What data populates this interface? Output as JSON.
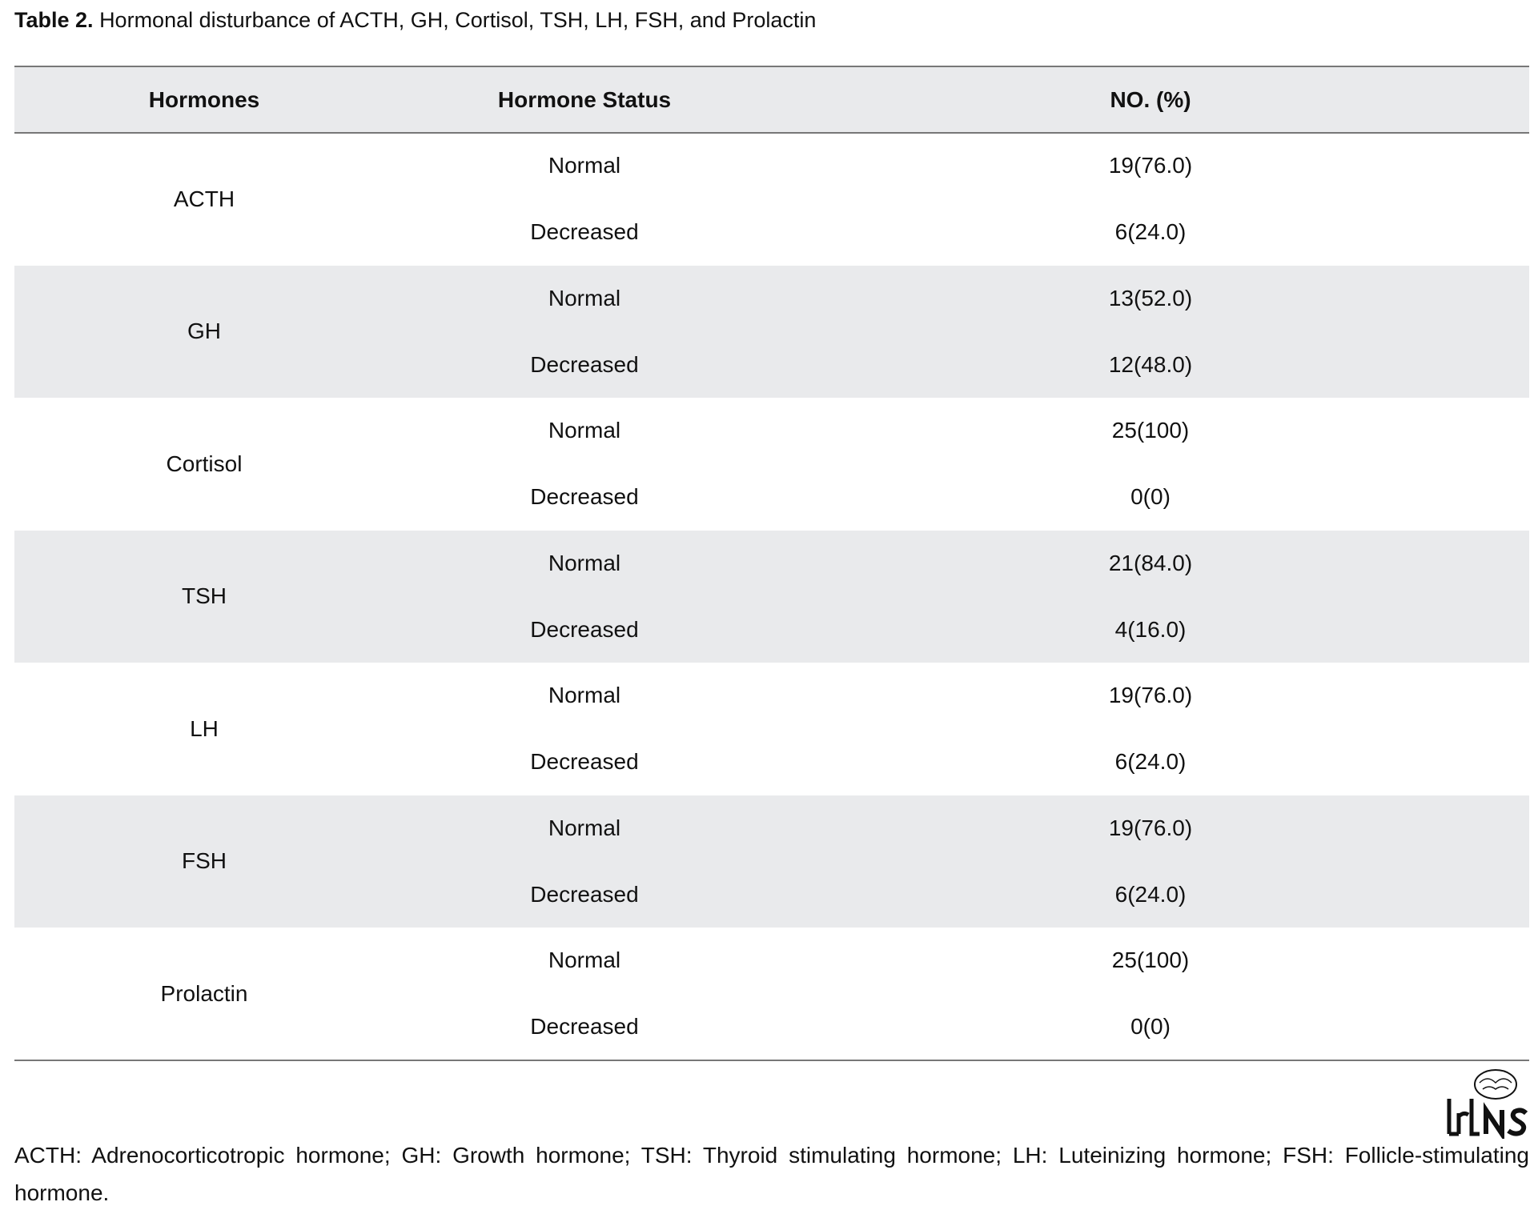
{
  "caption": {
    "label": "Table 2.",
    "text": "Hormonal disturbance of ACTH, GH, Cortisol, TSH, LH, FSH, and Prolactin"
  },
  "table": {
    "header": [
      "Hormones",
      "Hormone Status",
      "NO. (%)"
    ],
    "groups": [
      {
        "hormone": "ACTH",
        "rows": [
          [
            "Normal",
            "19(76.0)"
          ],
          [
            "Decreased",
            "6(24.0)"
          ]
        ]
      },
      {
        "hormone": "GH",
        "rows": [
          [
            "Normal",
            "13(52.0)"
          ],
          [
            "Decreased",
            "12(48.0)"
          ]
        ]
      },
      {
        "hormone": "Cortisol",
        "rows": [
          [
            "Normal",
            "25(100)"
          ],
          [
            "Decreased",
            "0(0)"
          ]
        ]
      },
      {
        "hormone": "TSH",
        "rows": [
          [
            "Normal",
            "21(84.0)"
          ],
          [
            "Decreased",
            "4(16.0)"
          ]
        ]
      },
      {
        "hormone": "LH",
        "rows": [
          [
            "Normal",
            "19(76.0)"
          ],
          [
            "Decreased",
            "6(24.0)"
          ]
        ]
      },
      {
        "hormone": "FSH",
        "rows": [
          [
            "Normal",
            "19(76.0)"
          ],
          [
            "Decreased",
            "6(24.0)"
          ]
        ]
      },
      {
        "hormone": "Prolactin",
        "rows": [
          [
            "Normal",
            "25(100)"
          ],
          [
            "Decreased",
            "0(0)"
          ]
        ]
      }
    ]
  },
  "footnote": "ACTH: Adrenocorticotropic hormone; GH: Growth hormone; TSH: Thyroid stimulating hormone; LH: Luteinizing hormone; FSH: Follicle-stimulating hormone."
}
